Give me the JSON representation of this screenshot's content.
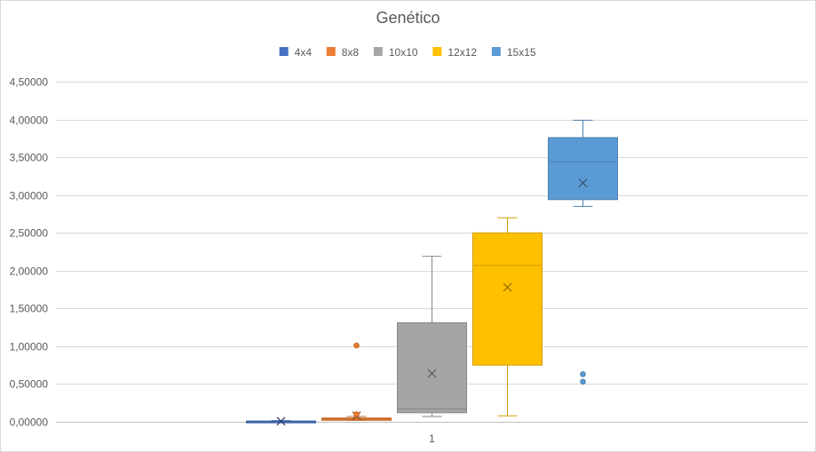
{
  "chart_data": {
    "type": "boxplot",
    "title": "Genético",
    "xlabel": "",
    "ylabel": "",
    "categories": [
      "1"
    ],
    "ylim": [
      0,
      4.5
    ],
    "ytick_values": [
      0,
      0.5,
      1,
      1.5,
      2,
      2.5,
      3,
      3.5,
      4,
      4.5
    ],
    "ytick_labels": [
      "0,00000",
      "0,50000",
      "1,00000",
      "1,50000",
      "2,00000",
      "2,50000",
      "3,00000",
      "3,50000",
      "4,00000",
      "4,50000"
    ],
    "grid": true,
    "legend_position": "top",
    "series": [
      {
        "name": "4x4",
        "color": "#4472C4",
        "whisker_low": 0.0,
        "q1": 0.0,
        "median": 0.005,
        "q3": 0.01,
        "whisker_high": 0.015,
        "mean": 0.008,
        "outliers": []
      },
      {
        "name": "8x8",
        "color": "#ED7D31",
        "whisker_low": 0.02,
        "q1": 0.02,
        "median": 0.04,
        "q3": 0.05,
        "whisker_high": 0.07,
        "mean": 0.08,
        "outliers": [
          1.01,
          0.1
        ]
      },
      {
        "name": "10x10",
        "color": "#A5A5A5",
        "whisker_low": 0.07,
        "q1": 0.12,
        "median": 0.17,
        "q3": 1.31,
        "whisker_high": 2.19,
        "mean": 0.64,
        "outliers": []
      },
      {
        "name": "12x12",
        "color": "#FFC000",
        "whisker_low": 0.08,
        "q1": 0.75,
        "median": 2.07,
        "q3": 2.5,
        "whisker_high": 2.7,
        "mean": 1.78,
        "outliers": []
      },
      {
        "name": "15x15",
        "color": "#5B9BD5",
        "whisker_low": 2.85,
        "q1": 2.94,
        "median": 3.44,
        "q3": 3.76,
        "whisker_high": 3.99,
        "mean": 3.16,
        "outliers": [
          0.63,
          0.53
        ]
      }
    ]
  }
}
